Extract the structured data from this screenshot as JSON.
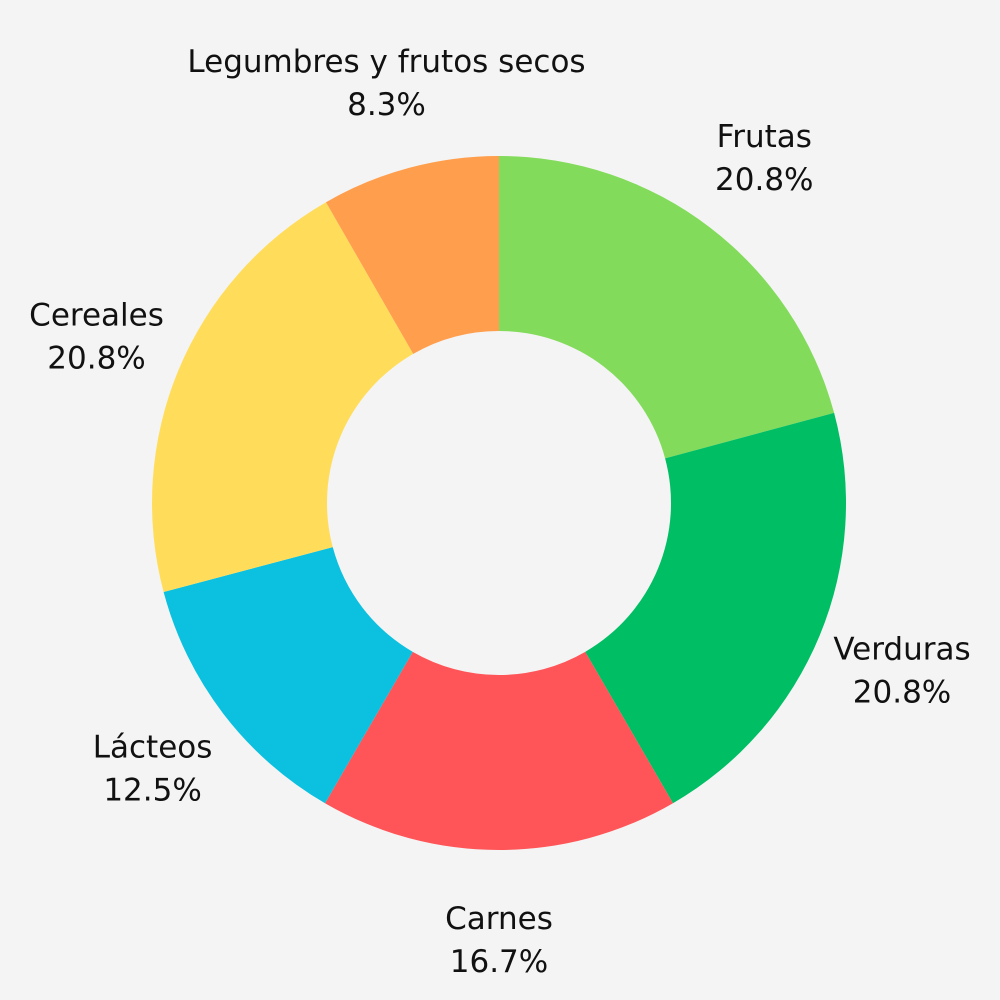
{
  "chart_data": {
    "type": "pie",
    "variant": "donut",
    "start": "12 o'clock",
    "direction": "clockwise",
    "slices": [
      {
        "label": "Frutas",
        "percent_label": "20.8%",
        "value": 20.8,
        "color": "#82db5a"
      },
      {
        "label": "Verduras",
        "percent_label": "20.8%",
        "value": 20.8,
        "color": "#00be64"
      },
      {
        "label": "Carnes",
        "percent_label": "16.7%",
        "value": 16.7,
        "color": "#ff5558"
      },
      {
        "label": "Lácteos",
        "percent_label": "12.5%",
        "value": 12.5,
        "color": "#0cc0df"
      },
      {
        "label": "Cereales",
        "percent_label": "20.8%",
        "value": 20.8,
        "color": "#ffdd5b"
      },
      {
        "label": "Legumbres y frutos secos",
        "percent_label": "8.3%",
        "value": 8.3,
        "color": "#ff9e4d"
      }
    ],
    "background": "#f4f4f4"
  }
}
